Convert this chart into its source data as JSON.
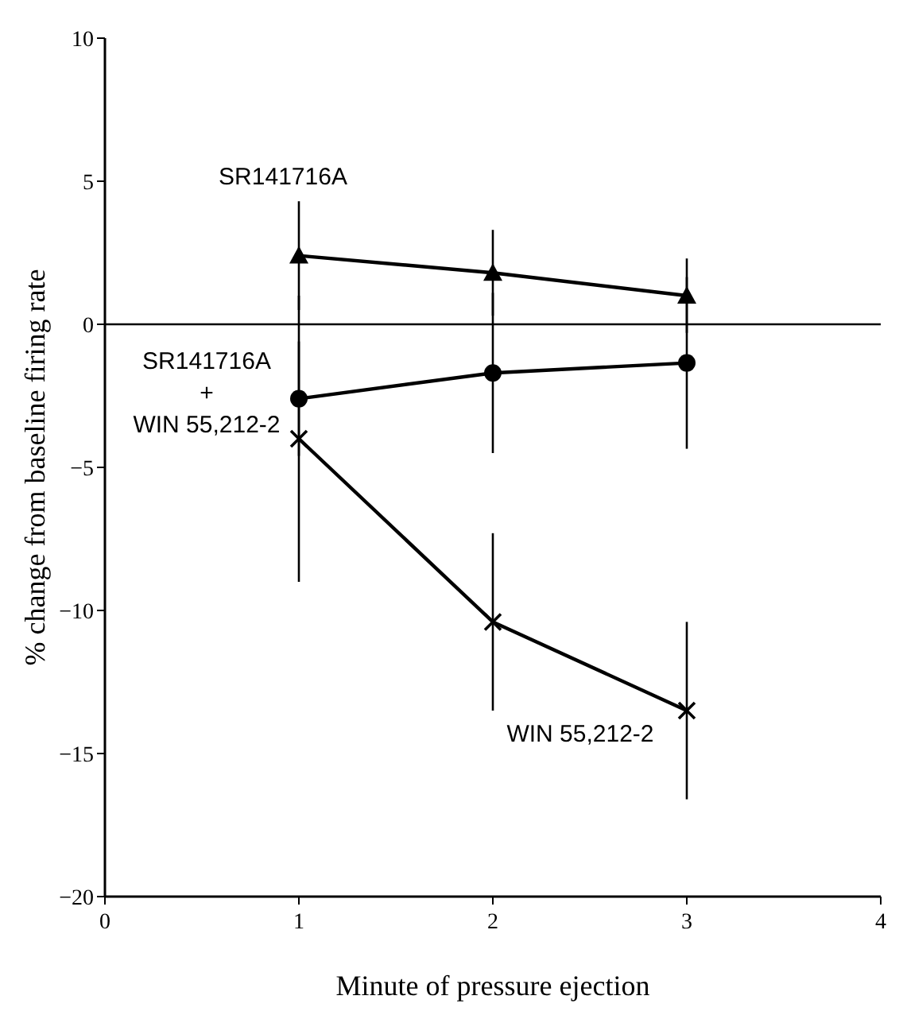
{
  "chart_data": {
    "type": "line",
    "xlabel": "Minute of pressure ejection",
    "ylabel": "% change from baseline firing rate",
    "x": [
      1,
      2,
      3
    ],
    "xlim": [
      0,
      4
    ],
    "xticks": [
      0,
      1,
      2,
      3,
      4
    ],
    "ylim": [
      -20,
      10
    ],
    "yticks": [
      -20,
      -15,
      -10,
      -5,
      0,
      5,
      10
    ],
    "series": [
      {
        "name": "SR141716A",
        "color": "#000000",
        "marker": "triangle",
        "values": [
          2.4,
          1.8,
          1.0
        ],
        "errors": [
          1.9,
          1.5,
          1.3
        ]
      },
      {
        "name": "SR141716A\n+\nWIN 55,212-2",
        "color": "#000000",
        "marker": "circle",
        "values": [
          -2.6,
          -1.7,
          -1.35
        ],
        "errors": [
          2.0,
          2.8,
          3.0
        ]
      },
      {
        "name": "WIN 55,212-2",
        "color": "#000000",
        "marker": "cross",
        "values": [
          -4.0,
          -10.4,
          -13.5
        ],
        "errors": [
          5.0,
          3.1,
          3.1
        ]
      }
    ],
    "ref_lines": [
      {
        "axis": "y",
        "value": 0,
        "label": null
      }
    ],
    "grid": false
  }
}
